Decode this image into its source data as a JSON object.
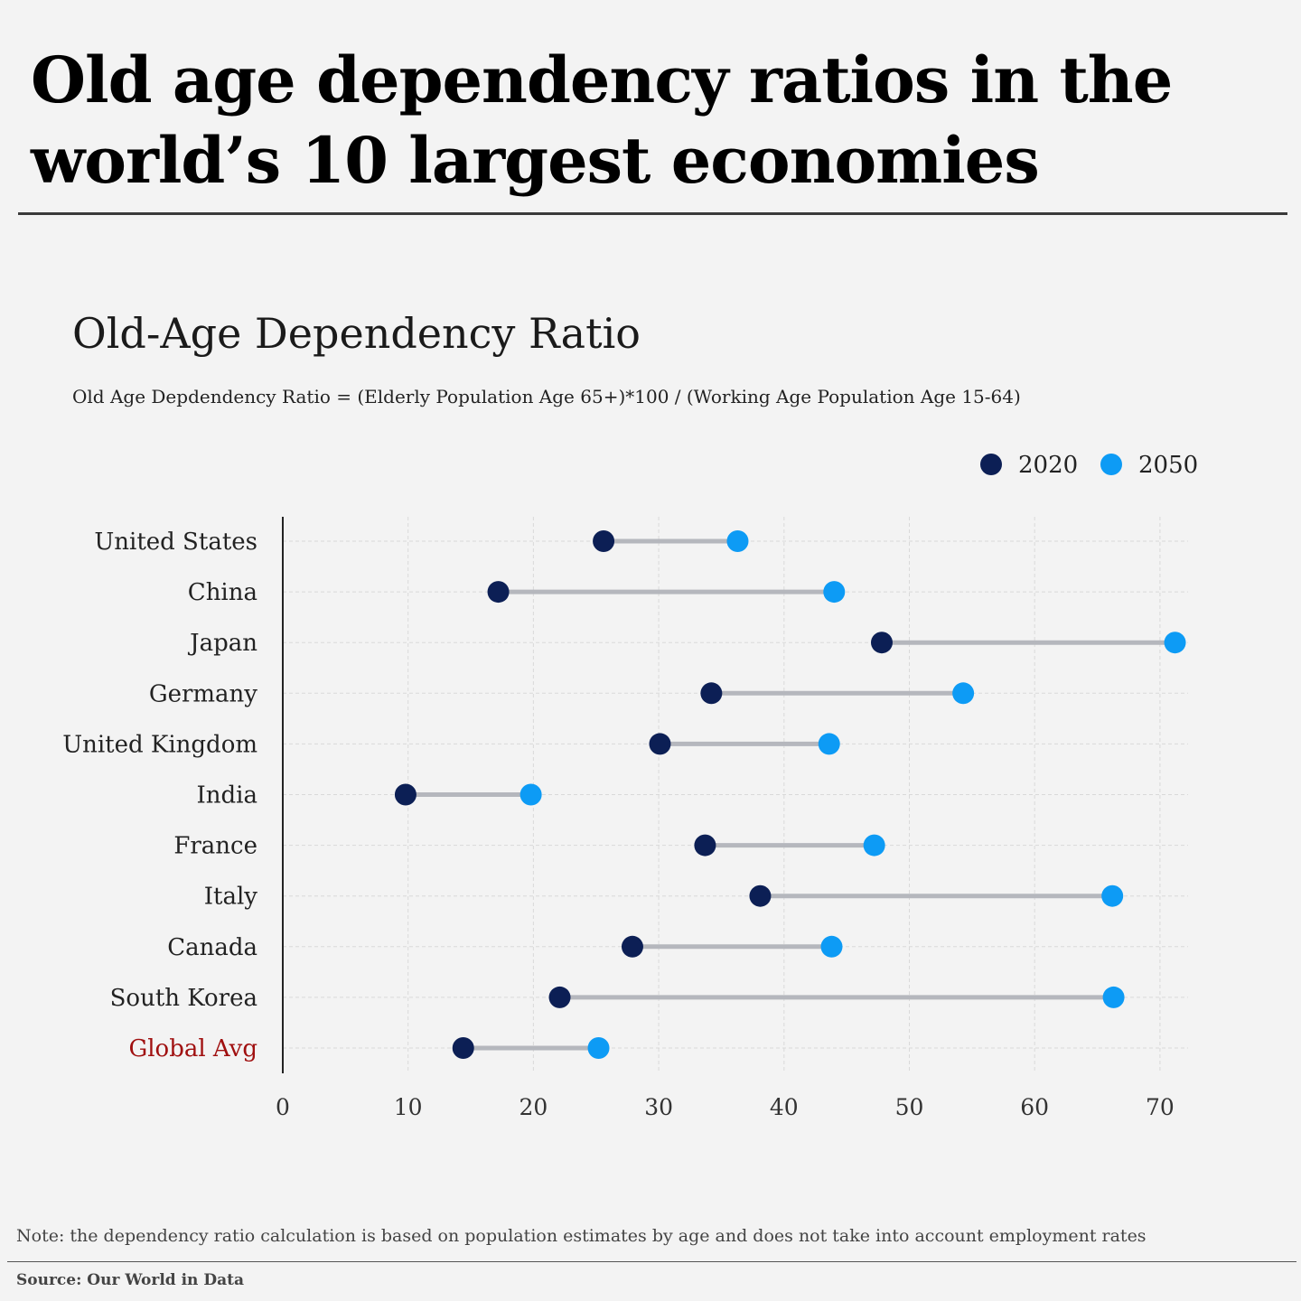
{
  "headline": {
    "line1": "Old age dependency ratios in the",
    "line2": "world’s 10 largest economies"
  },
  "colors": {
    "series_2020": "#0c1f55",
    "series_2050": "#0d9bf5",
    "connector": "#b5b7bd",
    "highlight_label": "#a01010"
  },
  "chart_data": {
    "type": "dumbbell",
    "title": "Old-Age Dependency Ratio",
    "subtitle": "Old Age Depdendency Ratio = (Elderly Population Age 65+)*100 / (Working Age Population Age 15-64)",
    "legend_position": "top-right",
    "grid": true,
    "xlim": [
      0,
      72
    ],
    "xticks": [
      0,
      10,
      20,
      30,
      40,
      50,
      60,
      70
    ],
    "categories": [
      "United States",
      "China",
      "Japan",
      "Germany",
      "United Kingdom",
      "India",
      "France",
      "Italy",
      "Canada",
      "South Korea",
      "Global Avg"
    ],
    "highlighted_category": "Global Avg",
    "series": [
      {
        "name": "2020",
        "values": [
          25.6,
          17.2,
          47.8,
          34.2,
          30.1,
          9.8,
          33.7,
          38.1,
          27.9,
          22.1,
          14.4
        ]
      },
      {
        "name": "2050",
        "values": [
          36.3,
          44.0,
          71.2,
          54.3,
          43.6,
          19.8,
          47.2,
          66.2,
          43.8,
          66.3,
          25.2
        ]
      }
    ]
  },
  "footer": {
    "note": "Note: the dependency ratio calculation is based on population estimates by age and does not take into account employment rates",
    "source": "Source: Our World in Data"
  }
}
